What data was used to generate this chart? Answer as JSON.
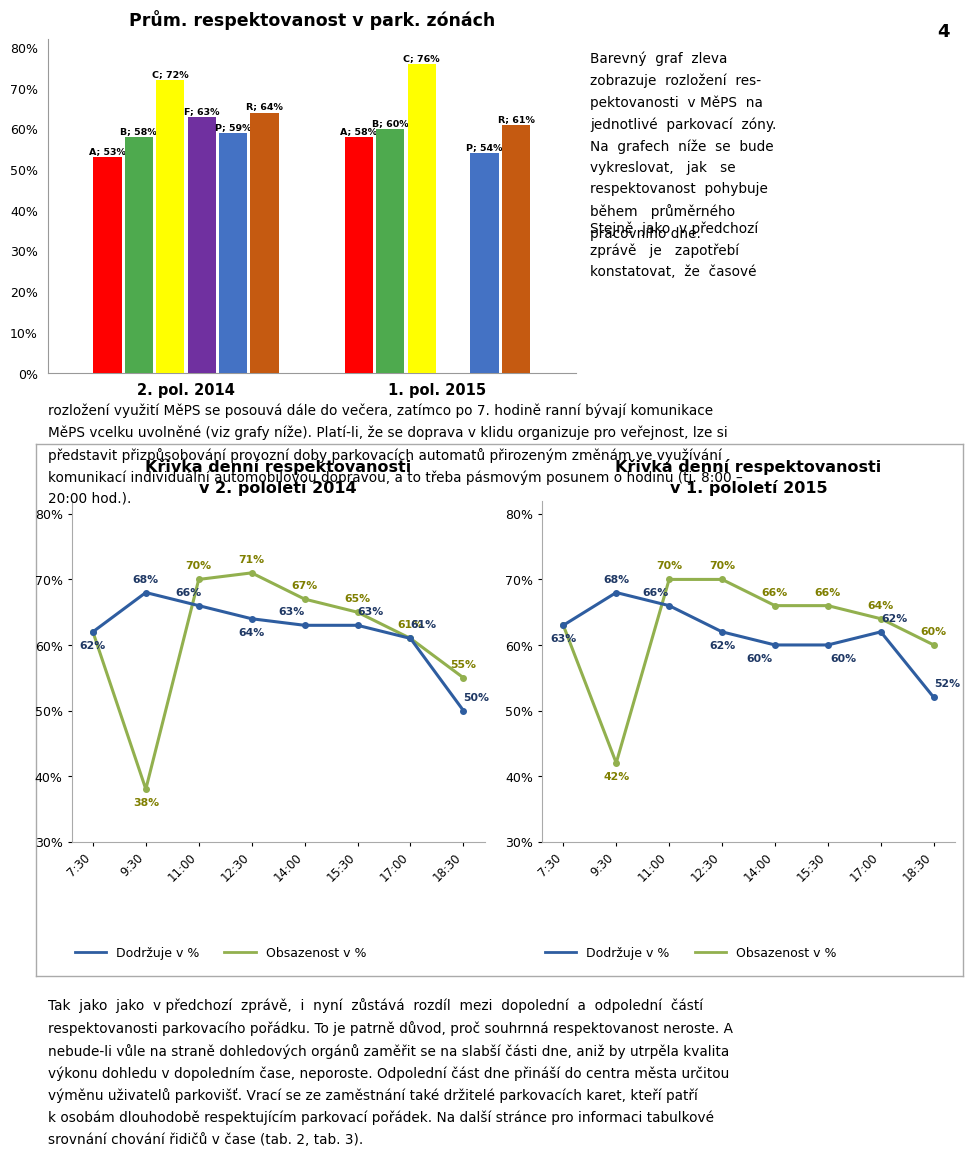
{
  "page_number": "4",
  "bar_chart": {
    "title": "Prům. respektovanost v park. zónách",
    "groups": [
      "2. pol. 2014",
      "1. pol. 2015"
    ],
    "categories": [
      "A",
      "B",
      "C",
      "F",
      "P",
      "R"
    ],
    "values_2014": [
      53,
      58,
      72,
      63,
      59,
      64
    ],
    "values_2015": [
      58,
      60,
      76,
      null,
      54,
      61
    ],
    "colors": [
      "#FF0000",
      "#4EAA4E",
      "#FFFF00",
      "#7030A0",
      "#4472C4",
      "#C55A11"
    ],
    "yticks": [
      0,
      10,
      20,
      30,
      40,
      50,
      60,
      70,
      80
    ],
    "ytick_labels": [
      "0%",
      "10%",
      "20%",
      "30%",
      "40%",
      "50%",
      "60%",
      "70%",
      "80%"
    ]
  },
  "line_chart1": {
    "title": "Křivka denní respektovanosti\nv 2. pololetí 2014",
    "xticklabels": [
      "7:30",
      "9:30",
      "11:00",
      "12:30",
      "14:00",
      "15:30",
      "17:00",
      "18:30"
    ],
    "dodrzuje": [
      62,
      68,
      66,
      64,
      63,
      63,
      61,
      50
    ],
    "obsazenost": [
      62,
      38,
      70,
      71,
      67,
      65,
      61,
      55
    ],
    "dodrzuje_show": [
      true,
      true,
      true,
      true,
      true,
      true,
      true,
      true
    ],
    "obsazenost_show_above": [
      false,
      false,
      true,
      true,
      true,
      true,
      true,
      true
    ],
    "obsazenost_show_below": [
      false,
      true,
      false,
      false,
      false,
      false,
      false,
      false
    ]
  },
  "line_chart2": {
    "title": "Křivka denní respektovanosti\nv 1. pololetí 2015",
    "xticklabels": [
      "7:30",
      "9:30",
      "11:00",
      "12:30",
      "14:00",
      "15:30",
      "17:00",
      "18:30"
    ],
    "dodrzuje": [
      63,
      68,
      66,
      62,
      60,
      60,
      62,
      52
    ],
    "obsazenost": [
      63,
      42,
      70,
      70,
      66,
      66,
      64,
      60
    ],
    "dodrzuje_show": [
      true,
      true,
      true,
      true,
      true,
      true,
      true,
      true
    ],
    "obsazenost_show_above": [
      false,
      false,
      true,
      true,
      true,
      true,
      true,
      true
    ],
    "obsazenost_show_below": [
      false,
      true,
      false,
      false,
      false,
      false,
      false,
      false
    ]
  },
  "bg_color": "#FFFFFF"
}
